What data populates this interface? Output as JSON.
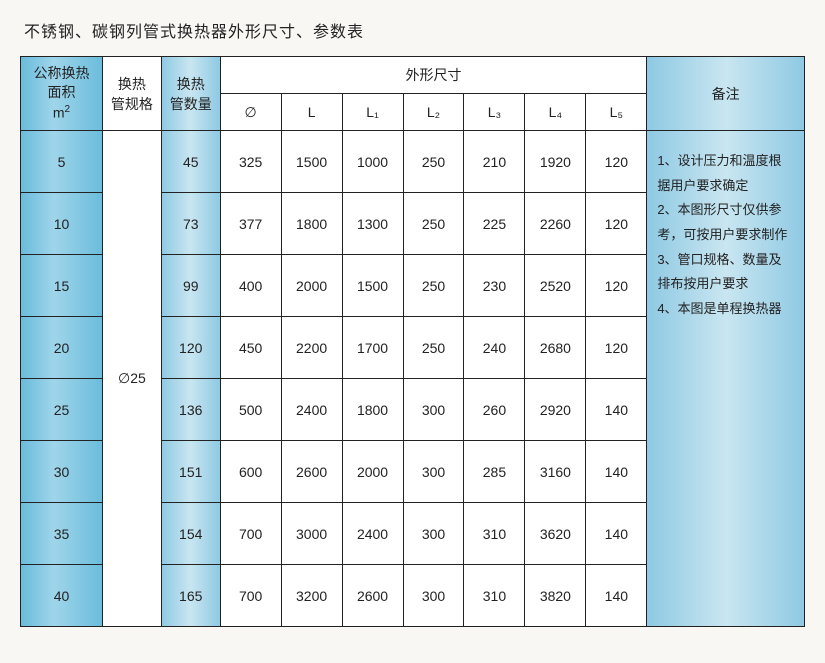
{
  "title": "不锈钢、碳钢列管式换热器外形尺寸、参数表",
  "headers": {
    "area_l1": "公称换热",
    "area_l2": "面积",
    "area_unit_base": "m",
    "area_unit_sup": "2",
    "spec_l1": "换热",
    "spec_l2": "管规格",
    "qty_l1": "换热",
    "qty_l2": "管数量",
    "dim_group": "外形尺寸",
    "remark": "备注",
    "c": "∅",
    "L": "L",
    "L1": "L₁",
    "L2": "L₂",
    "L3": "L₃",
    "L4": "L₄",
    "L5": "L₅"
  },
  "spec_value": "∅25",
  "rows": [
    {
      "area": "5",
      "qty": "45",
      "c": "325",
      "L": "1500",
      "L1": "1000",
      "L2": "250",
      "L3": "210",
      "L4": "1920",
      "L5": "120"
    },
    {
      "area": "10",
      "qty": "73",
      "c": "377",
      "L": "1800",
      "L1": "1300",
      "L2": "250",
      "L3": "225",
      "L4": "2260",
      "L5": "120"
    },
    {
      "area": "15",
      "qty": "99",
      "c": "400",
      "L": "2000",
      "L1": "1500",
      "L2": "250",
      "L3": "230",
      "L4": "2520",
      "L5": "120"
    },
    {
      "area": "20",
      "qty": "120",
      "c": "450",
      "L": "2200",
      "L1": "1700",
      "L2": "250",
      "L3": "240",
      "L4": "2680",
      "L5": "120"
    },
    {
      "area": "25",
      "qty": "136",
      "c": "500",
      "L": "2400",
      "L1": "1800",
      "L2": "300",
      "L3": "260",
      "L4": "2920",
      "L5": "140"
    },
    {
      "area": "30",
      "qty": "151",
      "c": "600",
      "L": "2600",
      "L1": "2000",
      "L2": "300",
      "L3": "285",
      "L4": "3160",
      "L5": "140"
    },
    {
      "area": "35",
      "qty": "154",
      "c": "700",
      "L": "3000",
      "L1": "2400",
      "L2": "300",
      "L3": "310",
      "L4": "3620",
      "L5": "140"
    },
    {
      "area": "40",
      "qty": "165",
      "c": "700",
      "L": "3200",
      "L1": "2600",
      "L2": "300",
      "L3": "310",
      "L4": "3820",
      "L5": "140"
    }
  ],
  "remarks": [
    "1、设计压力和温度根据用户要求确定",
    "2、本图形尺寸仅供参考，可按用户要求制作",
    "3、管口规格、数量及排布按用户要求",
    "4、本图是单程换热器"
  ],
  "style": {
    "area_bg": "linear-gradient(90deg,#6bbcdc,#9fd5ea,#6bbcdc)",
    "qty_bg": "linear-gradient(90deg,#8fc9e3,#c9e6f1,#8fc9e3)",
    "remark_bg": "linear-gradient(90deg,#8fc9e3,#c9e6f1,#8fc9e3)",
    "border_color": "#222222",
    "page_bg": "#f9f7f4",
    "title_fontsize": 16,
    "cell_fontsize": 14,
    "remark_fontsize": 13
  }
}
